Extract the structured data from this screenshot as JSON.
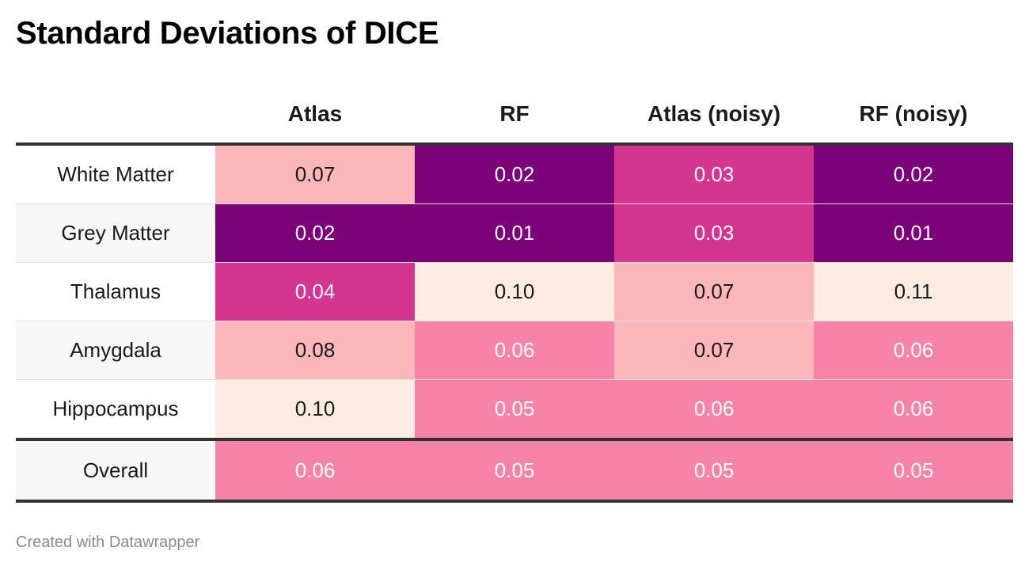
{
  "chart_data": {
    "type": "table",
    "title": "Standard Deviations of DICE",
    "columns": [
      "Atlas",
      "RF",
      "Atlas (noisy)",
      "RF (noisy)"
    ],
    "rows": [
      {
        "label": "White Matter",
        "values": [
          "0.07",
          "0.02",
          "0.03",
          "0.02"
        ]
      },
      {
        "label": "Grey Matter",
        "values": [
          "0.02",
          "0.01",
          "0.03",
          "0.01"
        ]
      },
      {
        "label": "Thalamus",
        "values": [
          "0.04",
          "0.10",
          "0.07",
          "0.11"
        ]
      },
      {
        "label": "Amygdala",
        "values": [
          "0.08",
          "0.06",
          "0.07",
          "0.06"
        ]
      },
      {
        "label": "Hippocampus",
        "values": [
          "0.10",
          "0.05",
          "0.06",
          "0.06"
        ]
      }
    ],
    "summary_row": {
      "label": "Overall",
      "values": [
        "0.06",
        "0.05",
        "0.05",
        "0.05"
      ]
    },
    "color_scale": {
      "0.01": "#7a0177",
      "0.02": "#7a0177",
      "0.03": "#d3358f",
      "0.04": "#d3358f",
      "0.05": "#f783a8",
      "0.06": "#f783a8",
      "0.07": "#fbb7b9",
      "0.08": "#fbb7b9",
      "0.10": "#feebe2",
      "0.11": "#feebe2"
    },
    "light_text_color": "#ffffff",
    "dark_text_color": "#1a1a1a"
  },
  "footer": {
    "credit": "Created with Datawrapper"
  }
}
